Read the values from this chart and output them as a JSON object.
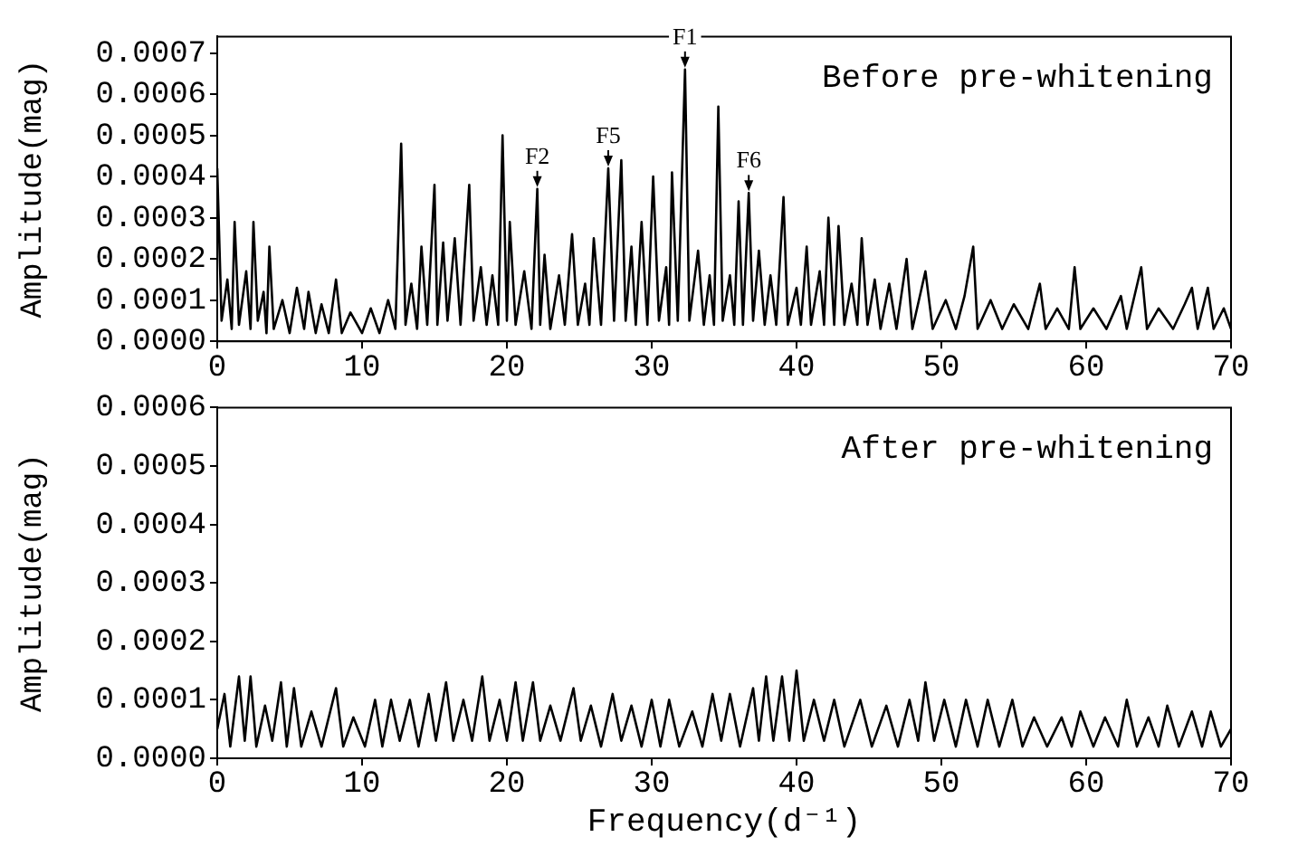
{
  "chart_data": [
    {
      "type": "line",
      "ylabel": "Amplitude(mag)",
      "annotations": [
        "Before pre-whitening",
        {
          "text": "F1",
          "x": 32.3,
          "y": 0.00066
        },
        {
          "text": "F2",
          "x": 22.1,
          "y": 0.00037
        },
        {
          "text": "F5",
          "x": 27.0,
          "y": 0.00042
        },
        {
          "text": "F6",
          "x": 36.7,
          "y": 0.00036
        }
      ],
      "x": [
        0,
        0.3,
        0.7,
        1.0,
        1.2,
        1.5,
        2.0,
        2.3,
        2.5,
        2.8,
        3.2,
        3.4,
        3.6,
        3.9,
        4.5,
        5.0,
        5.5,
        6.0,
        6.3,
        6.8,
        7.2,
        7.7,
        8.2,
        8.6,
        9.2,
        10.0,
        10.6,
        11.2,
        11.8,
        12.3,
        12.7,
        13.0,
        13.4,
        13.8,
        14.1,
        14.5,
        15.0,
        15.2,
        15.6,
        15.9,
        16.4,
        16.8,
        17.4,
        17.7,
        18.2,
        18.6,
        19.0,
        19.4,
        19.7,
        20.0,
        20.2,
        20.6,
        21.2,
        21.7,
        22.1,
        22.3,
        22.6,
        23.0,
        23.6,
        24.0,
        24.5,
        24.9,
        25.4,
        25.7,
        26.0,
        26.5,
        27.0,
        27.4,
        27.9,
        28.2,
        28.6,
        28.9,
        29.3,
        29.7,
        30.1,
        30.5,
        31.0,
        31.2,
        31.4,
        31.8,
        32.3,
        32.6,
        33.2,
        33.6,
        34.0,
        34.3,
        34.6,
        34.9,
        35.4,
        35.7,
        36.0,
        36.3,
        36.7,
        37.0,
        37.4,
        37.8,
        38.2,
        38.6,
        39.1,
        39.4,
        40.0,
        40.3,
        40.7,
        41.0,
        41.6,
        41.9,
        42.2,
        42.6,
        42.9,
        43.3,
        43.8,
        44.2,
        44.5,
        44.9,
        45.4,
        45.8,
        46.4,
        46.9,
        47.6,
        48.0,
        48.9,
        49.4,
        50.3,
        51.0,
        51.6,
        52.2,
        52.5,
        53.4,
        54.2,
        55.0,
        56.0,
        56.8,
        57.2,
        58.0,
        58.8,
        59.2,
        59.6,
        60.5,
        61.4,
        62.4,
        62.8,
        63.8,
        64.2,
        65.0,
        66.0,
        66.8,
        67.3,
        67.7,
        68.4,
        68.8,
        69.5,
        70.0
      ],
      "series": [
        {
          "color": "#000000",
          "values": [
            0.00042,
            5e-05,
            0.00015,
            3e-05,
            0.00029,
            4e-05,
            0.00017,
            3e-05,
            0.00029,
            5e-05,
            0.00012,
            2e-05,
            0.00023,
            3e-05,
            0.0001,
            2e-05,
            0.00013,
            3e-05,
            0.00012,
            2e-05,
            9e-05,
            2e-05,
            0.00015,
            2e-05,
            7e-05,
            2e-05,
            8e-05,
            2e-05,
            0.0001,
            3e-05,
            0.00048,
            4e-05,
            0.00014,
            3e-05,
            0.00023,
            4e-05,
            0.00038,
            4e-05,
            0.00024,
            5e-05,
            0.00025,
            4e-05,
            0.00038,
            5e-05,
            0.00018,
            4e-05,
            0.00016,
            4e-05,
            0.0005,
            5e-05,
            0.00029,
            4e-05,
            0.00017,
            3e-05,
            0.00037,
            4e-05,
            0.00021,
            3e-05,
            0.00016,
            4e-05,
            0.00026,
            4e-05,
            0.00014,
            4e-05,
            0.00025,
            4e-05,
            0.00042,
            5e-05,
            0.00044,
            5e-05,
            0.00023,
            4e-05,
            0.00029,
            4e-05,
            0.0004,
            5e-05,
            0.00018,
            4e-05,
            0.00041,
            5e-05,
            0.00066,
            5e-05,
            0.00022,
            4e-05,
            0.00016,
            4e-05,
            0.00057,
            5e-05,
            0.00016,
            4e-05,
            0.00034,
            4e-05,
            0.00036,
            5e-05,
            0.00022,
            4e-05,
            0.00016,
            4e-05,
            0.00035,
            4e-05,
            0.00013,
            4e-05,
            0.00023,
            4e-05,
            0.00017,
            4e-05,
            0.0003,
            4e-05,
            0.00028,
            4e-05,
            0.00014,
            4e-05,
            0.00025,
            4e-05,
            0.00015,
            3e-05,
            0.00014,
            3e-05,
            0.0002,
            3e-05,
            0.00017,
            3e-05,
            0.0001,
            3e-05,
            0.00011,
            0.00023,
            3e-05,
            0.0001,
            3e-05,
            9e-05,
            3e-05,
            0.00014,
            3e-05,
            8e-05,
            3e-05,
            0.00018,
            3e-05,
            8e-05,
            3e-05,
            0.00011,
            3e-05,
            0.00018,
            3e-05,
            8e-05,
            3e-05,
            9e-05,
            0.00013,
            3e-05,
            0.00013,
            3e-05,
            8e-05,
            3e-05
          ]
        }
      ],
      "xlim": [
        0,
        70
      ],
      "xticks": [
        0,
        10,
        20,
        30,
        40,
        50,
        60,
        70
      ],
      "ylim": [
        0,
        0.00074
      ],
      "yticks": [
        {
          "value": 0,
          "label": "0.0000"
        },
        {
          "value": 0.0001,
          "label": "0.0001"
        },
        {
          "value": 0.0002,
          "label": "0.0002"
        },
        {
          "value": 0.0003,
          "label": "0.0003"
        },
        {
          "value": 0.0004,
          "label": "0.0004"
        },
        {
          "value": 0.0005,
          "label": "0.0005"
        },
        {
          "value": 0.0006,
          "label": "0.0006"
        },
        {
          "value": 0.0007,
          "label": "0.0007"
        }
      ],
      "grid": false,
      "legend": false
    },
    {
      "type": "line",
      "ylabel": "Amplitude(mag)",
      "xlabel": "Frequency(d⁻¹)",
      "annotations": [
        "After pre-whitening"
      ],
      "x": [
        0,
        0.5,
        0.9,
        1.5,
        1.9,
        2.3,
        2.7,
        3.3,
        3.8,
        4.4,
        4.8,
        5.3,
        5.8,
        6.5,
        7.2,
        8.2,
        8.7,
        9.4,
        10.2,
        10.9,
        11.4,
        12.0,
        12.6,
        13.3,
        13.9,
        14.6,
        15.1,
        15.8,
        16.3,
        17.0,
        17.6,
        18.3,
        18.8,
        19.5,
        20.0,
        20.6,
        21.1,
        21.8,
        22.3,
        23.0,
        23.7,
        24.6,
        25.1,
        25.8,
        26.5,
        27.3,
        27.9,
        28.6,
        29.3,
        30.0,
        30.6,
        31.2,
        31.9,
        32.8,
        33.5,
        34.2,
        34.8,
        35.4,
        36.1,
        37.0,
        37.4,
        37.9,
        38.4,
        39.0,
        39.5,
        40.0,
        40.5,
        41.2,
        41.9,
        42.6,
        43.3,
        44.4,
        45.2,
        46.2,
        47.0,
        47.8,
        48.4,
        48.9,
        49.5,
        50.2,
        51.0,
        51.7,
        52.5,
        53.2,
        54.0,
        54.9,
        55.6,
        56.4,
        57.3,
        58.3,
        59.0,
        59.6,
        60.5,
        61.3,
        62.2,
        62.8,
        63.5,
        64.3,
        65.0,
        65.6,
        66.4,
        67.3,
        68.0,
        68.6,
        69.3,
        70
      ],
      "series": [
        {
          "color": "#000000",
          "values": [
            5e-05,
            0.00011,
            2e-05,
            0.00014,
            3e-05,
            0.00014,
            2e-05,
            9e-05,
            3e-05,
            0.00013,
            2e-05,
            0.00012,
            2e-05,
            8e-05,
            2e-05,
            0.00012,
            2e-05,
            7e-05,
            2e-05,
            0.0001,
            2e-05,
            0.0001,
            3e-05,
            0.0001,
            2e-05,
            0.00011,
            3e-05,
            0.00013,
            3e-05,
            0.0001,
            3e-05,
            0.00014,
            3e-05,
            0.0001,
            3e-05,
            0.00013,
            3e-05,
            0.00013,
            3e-05,
            9e-05,
            3e-05,
            0.00012,
            3e-05,
            9e-05,
            2e-05,
            0.00011,
            3e-05,
            9e-05,
            2e-05,
            0.0001,
            2e-05,
            0.0001,
            2e-05,
            8e-05,
            2e-05,
            0.00011,
            3e-05,
            0.00011,
            2e-05,
            0.00012,
            3e-05,
            0.00014,
            3e-05,
            0.00014,
            3e-05,
            0.00015,
            3e-05,
            0.0001,
            3e-05,
            0.0001,
            2e-05,
            0.0001,
            2e-05,
            9e-05,
            2e-05,
            0.0001,
            3e-05,
            0.00013,
            3e-05,
            0.0001,
            2e-05,
            0.0001,
            2e-05,
            0.0001,
            2e-05,
            0.0001,
            2e-05,
            7e-05,
            2e-05,
            7e-05,
            2e-05,
            8e-05,
            2e-05,
            7e-05,
            2e-05,
            0.0001,
            2e-05,
            7e-05,
            2e-05,
            9e-05,
            2e-05,
            8e-05,
            2e-05,
            8e-05,
            2e-05,
            5e-05
          ]
        }
      ],
      "xlim": [
        0,
        70
      ],
      "xticks": [
        0,
        10,
        20,
        30,
        40,
        50,
        60,
        70
      ],
      "ylim": [
        0,
        0.0006
      ],
      "yticks": [
        {
          "value": 0,
          "label": "0.0000"
        },
        {
          "value": 0.0001,
          "label": "0.0001"
        },
        {
          "value": 0.0002,
          "label": "0.0002"
        },
        {
          "value": 0.0003,
          "label": "0.0003"
        },
        {
          "value": 0.0004,
          "label": "0.0004"
        },
        {
          "value": 0.0005,
          "label": "0.0005"
        },
        {
          "value": 0.0006,
          "label": "0.0006"
        }
      ],
      "grid": false,
      "legend": false
    }
  ]
}
